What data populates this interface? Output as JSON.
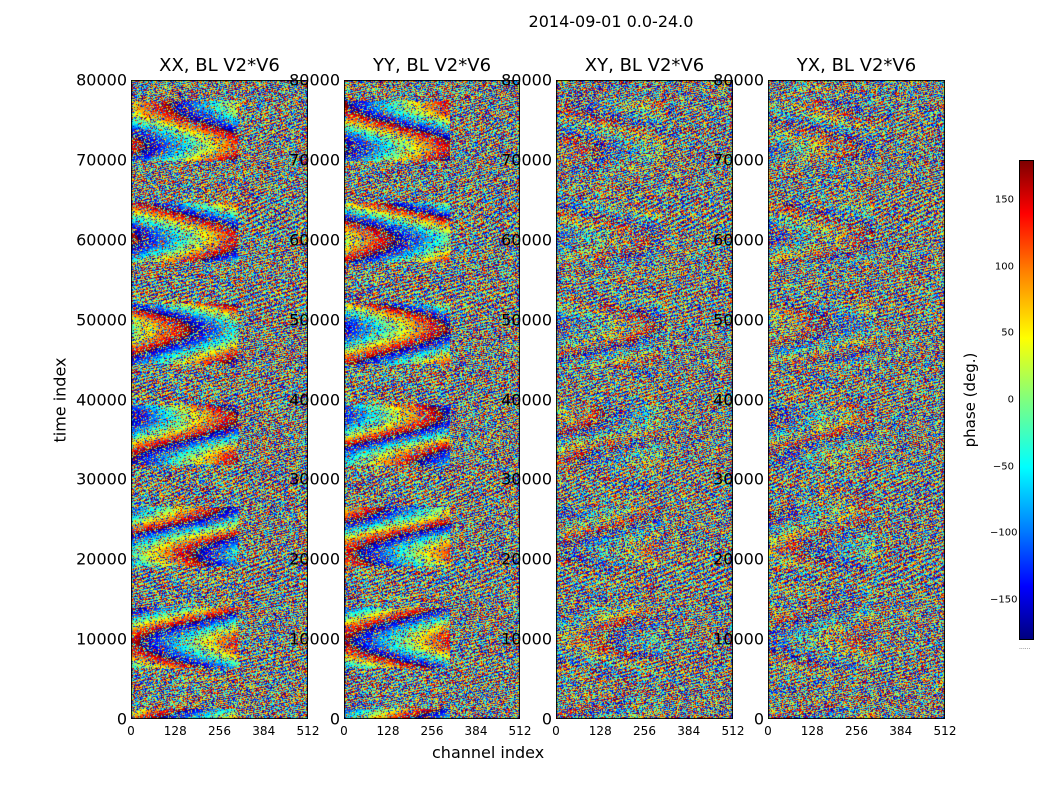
{
  "figure_title": "2014-09-01 0.0-24.0",
  "chart_data": [
    {
      "type": "heatmap",
      "title": "XX, BL V2*V6",
      "xlabel": "channel index",
      "ylabel": "time index",
      "xlim": [
        0,
        512
      ],
      "ylim": [
        0,
        80000
      ],
      "xticks": [
        0,
        128,
        256,
        384,
        512
      ],
      "yticks": [
        0,
        10000,
        20000,
        30000,
        40000,
        50000,
        60000,
        70000,
        80000
      ],
      "value_range": [
        -180,
        180
      ],
      "cmap": "jet"
    },
    {
      "type": "heatmap",
      "title": "YY, BL V2*V6",
      "xlim": [
        0,
        512
      ],
      "ylim": [
        0,
        80000
      ],
      "xticks": [
        0,
        128,
        256,
        384,
        512
      ],
      "yticks": [
        0,
        10000,
        20000,
        30000,
        40000,
        50000,
        60000,
        70000,
        80000
      ],
      "value_range": [
        -180,
        180
      ],
      "cmap": "jet"
    },
    {
      "type": "heatmap",
      "title": "XY, BL V2*V6",
      "xlim": [
        0,
        512
      ],
      "ylim": [
        0,
        80000
      ],
      "xticks": [
        0,
        128,
        256,
        384,
        512
      ],
      "yticks": [
        0,
        10000,
        20000,
        30000,
        40000,
        50000,
        60000,
        70000,
        80000
      ],
      "value_range": [
        -180,
        180
      ],
      "cmap": "jet"
    },
    {
      "type": "heatmap",
      "title": "YX, BL V2*V6",
      "xlim": [
        0,
        512
      ],
      "ylim": [
        0,
        80000
      ],
      "xticks": [
        0,
        128,
        256,
        384,
        512
      ],
      "yticks": [
        0,
        10000,
        20000,
        30000,
        40000,
        50000,
        60000,
        70000,
        80000
      ],
      "value_range": [
        -180,
        180
      ],
      "cmap": "jet"
    }
  ],
  "colorbar": {
    "label": "phase (deg.)",
    "range": [
      -180,
      180
    ],
    "ticks": [
      -150,
      -100,
      -50,
      0,
      50,
      100,
      150
    ],
    "tick_labels": [
      "−150",
      "−100",
      "−50",
      "0",
      "50",
      "100",
      "150"
    ],
    "extra_label": "......"
  }
}
